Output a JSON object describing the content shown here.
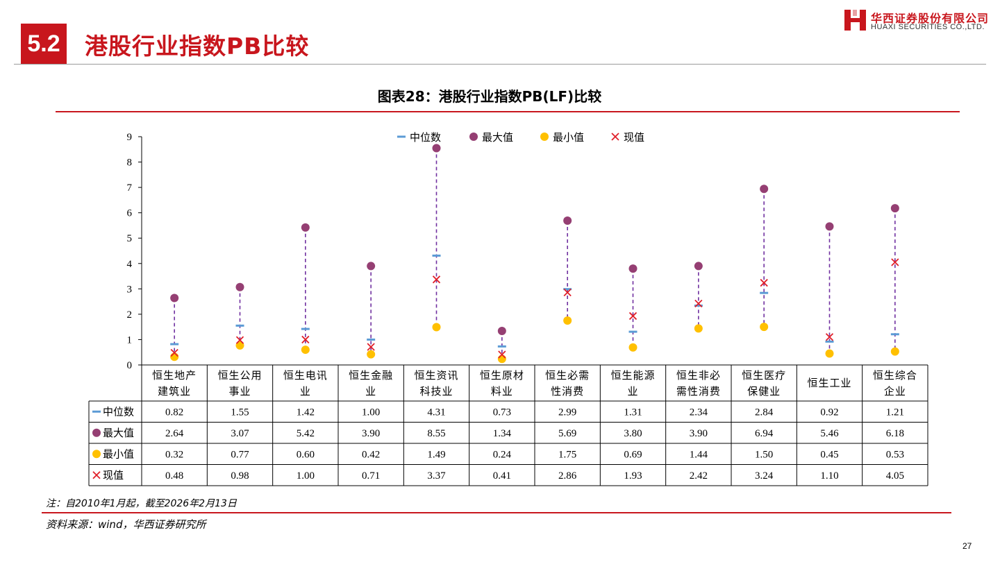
{
  "header": {
    "section_number": "5.2",
    "section_title": "港股行业指数PB比较",
    "logo_cn": "华西证券股份有限公司",
    "logo_en": "HUAXI SECURITIES CO.,LTD."
  },
  "chart_data": {
    "type": "scatter",
    "title": "图表28：港股行业指数PB(LF)比较",
    "categories": [
      [
        "恒生地产",
        "建筑业"
      ],
      [
        "恒生公用",
        "事业"
      ],
      [
        "恒生电讯",
        "业"
      ],
      [
        "恒生金融",
        "业"
      ],
      [
        "恒生资讯",
        "科技业"
      ],
      [
        "恒生原材",
        "料业"
      ],
      [
        "恒生必需",
        "性消费"
      ],
      [
        "恒生能源",
        "业"
      ],
      [
        "恒生非必",
        "需性消费"
      ],
      [
        "恒生医疗",
        "保健业"
      ],
      [
        "恒生工业"
      ],
      [
        "恒生综合",
        "企业"
      ]
    ],
    "series": [
      {
        "name": "中位数",
        "marker": "dash",
        "color": "#5b9bd5",
        "values": [
          0.82,
          1.55,
          1.42,
          1.0,
          4.31,
          0.73,
          2.99,
          1.31,
          2.34,
          2.84,
          0.92,
          1.21
        ],
        "labels": [
          "0.82",
          "1.55",
          "1.42",
          "1.00",
          "4.31",
          "0.73",
          "2.99",
          "1.31",
          "2.34",
          "2.84",
          "0.92",
          "1.21"
        ]
      },
      {
        "name": "最大值",
        "marker": "circle",
        "color": "#953f73",
        "values": [
          2.64,
          3.07,
          5.42,
          3.9,
          8.55,
          1.34,
          5.69,
          3.8,
          3.9,
          6.94,
          5.46,
          6.18
        ],
        "labels": [
          "2.64",
          "3.07",
          "5.42",
          "3.90",
          "8.55",
          "1.34",
          "5.69",
          "3.80",
          "3.90",
          "6.94",
          "5.46",
          "6.18"
        ]
      },
      {
        "name": "最小值",
        "marker": "circle",
        "color": "#ffc000",
        "values": [
          0.32,
          0.77,
          0.6,
          0.42,
          1.49,
          0.24,
          1.75,
          0.69,
          1.44,
          1.5,
          0.45,
          0.53
        ],
        "labels": [
          "0.32",
          "0.77",
          "0.60",
          "0.42",
          "1.49",
          "0.24",
          "1.75",
          "0.69",
          "1.44",
          "1.50",
          "0.45",
          "0.53"
        ]
      },
      {
        "name": "现值",
        "marker": "x",
        "color": "#e0202a",
        "values": [
          0.48,
          0.98,
          1.0,
          0.71,
          3.37,
          0.41,
          2.86,
          1.93,
          2.42,
          3.24,
          1.1,
          4.05
        ],
        "labels": [
          "0.48",
          "0.98",
          "1.00",
          "0.71",
          "3.37",
          "0.41",
          "2.86",
          "1.93",
          "2.42",
          "3.24",
          "1.10",
          "4.05"
        ]
      }
    ],
    "range_line_color": "#7030a0",
    "ylim": [
      0,
      9
    ],
    "yticks": [
      "0",
      "1",
      "2",
      "3",
      "4",
      "5",
      "6",
      "7",
      "8",
      "9"
    ],
    "legend_position": "top-center",
    "grid": false,
    "data_table": true
  },
  "footer": {
    "note": "注：自2010年1月起，截至2026年2月13日",
    "source": "资料来源：wind，华西证券研究所",
    "page_number": "27"
  }
}
